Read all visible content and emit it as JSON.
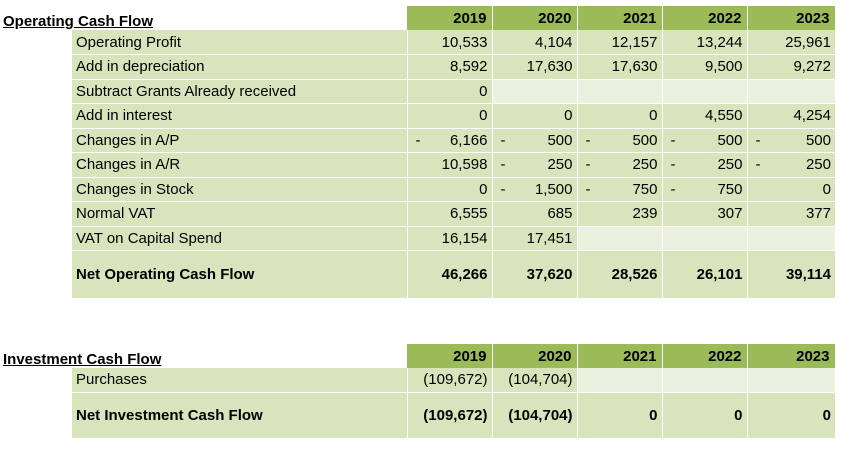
{
  "operating": {
    "title": "Operating Cash Flow",
    "years": [
      "2019",
      "2020",
      "2021",
      "2022",
      "2023"
    ],
    "rows": [
      {
        "label": "Operating Profit",
        "cells": [
          {
            "neg": "",
            "v": "10,533"
          },
          {
            "neg": "",
            "v": "4,104"
          },
          {
            "neg": "",
            "v": "12,157"
          },
          {
            "neg": "",
            "v": "13,244"
          },
          {
            "neg": "",
            "v": "25,961"
          }
        ]
      },
      {
        "label": "Add in depreciation",
        "cells": [
          {
            "neg": "",
            "v": "8,592"
          },
          {
            "neg": "",
            "v": "17,630"
          },
          {
            "neg": "",
            "v": "17,630"
          },
          {
            "neg": "",
            "v": "9,500"
          },
          {
            "neg": "",
            "v": "9,272"
          }
        ]
      },
      {
        "label": "Subtract Grants Already received",
        "cells": [
          {
            "neg": "",
            "v": "0"
          },
          {
            "neg": "",
            "v": ""
          },
          {
            "neg": "",
            "v": ""
          },
          {
            "neg": "",
            "v": ""
          },
          {
            "neg": "",
            "v": ""
          }
        ]
      },
      {
        "label": "Add in interest",
        "cells": [
          {
            "neg": "",
            "v": "0"
          },
          {
            "neg": "",
            "v": "0"
          },
          {
            "neg": "",
            "v": "0"
          },
          {
            "neg": "",
            "v": "4,550"
          },
          {
            "neg": "",
            "v": "4,254"
          }
        ]
      },
      {
        "label": "Changes in A/P",
        "cells": [
          {
            "neg": "-",
            "v": "6,166"
          },
          {
            "neg": "-",
            "v": "500"
          },
          {
            "neg": "-",
            "v": "500"
          },
          {
            "neg": "-",
            "v": "500"
          },
          {
            "neg": "-",
            "v": "500"
          }
        ]
      },
      {
        "label": "Changes in A/R",
        "cells": [
          {
            "neg": "",
            "v": "10,598"
          },
          {
            "neg": "-",
            "v": "250"
          },
          {
            "neg": "-",
            "v": "250"
          },
          {
            "neg": "-",
            "v": "250"
          },
          {
            "neg": "-",
            "v": "250"
          }
        ]
      },
      {
        "label": "Changes in Stock",
        "cells": [
          {
            "neg": "",
            "v": "0"
          },
          {
            "neg": "-",
            "v": "1,500"
          },
          {
            "neg": "-",
            "v": "750"
          },
          {
            "neg": "-",
            "v": "750"
          },
          {
            "neg": "",
            "v": "0"
          }
        ]
      },
      {
        "label": "Normal VAT",
        "cells": [
          {
            "neg": "",
            "v": "6,555"
          },
          {
            "neg": "",
            "v": "685"
          },
          {
            "neg": "",
            "v": "239"
          },
          {
            "neg": "",
            "v": "307"
          },
          {
            "neg": "",
            "v": "377"
          }
        ]
      },
      {
        "label": "VAT on Capital Spend",
        "cells": [
          {
            "neg": "",
            "v": "16,154"
          },
          {
            "neg": "",
            "v": "17,451"
          },
          {
            "neg": "",
            "v": ""
          },
          {
            "neg": "",
            "v": ""
          },
          {
            "neg": "",
            "v": ""
          }
        ]
      }
    ],
    "total": {
      "label": "Net Operating Cash Flow",
      "values": [
        "46,266",
        "37,620",
        "28,526",
        "26,101",
        "39,114"
      ]
    }
  },
  "investment": {
    "title": "Investment Cash Flow",
    "years": [
      "2019",
      "2020",
      "2021",
      "2022",
      "2023"
    ],
    "rows": [
      {
        "label": "Purchases",
        "values": [
          "(109,672)",
          "(104,704)",
          "",
          "",
          ""
        ]
      }
    ],
    "total": {
      "label": "Net Investment Cash Flow",
      "values": [
        "(109,672)",
        "(104,704)",
        "0",
        "0",
        "0"
      ]
    }
  },
  "colors": {
    "header": "#9bbb59",
    "row": "#d8e4bc",
    "row_alt": "#ebf1de"
  }
}
